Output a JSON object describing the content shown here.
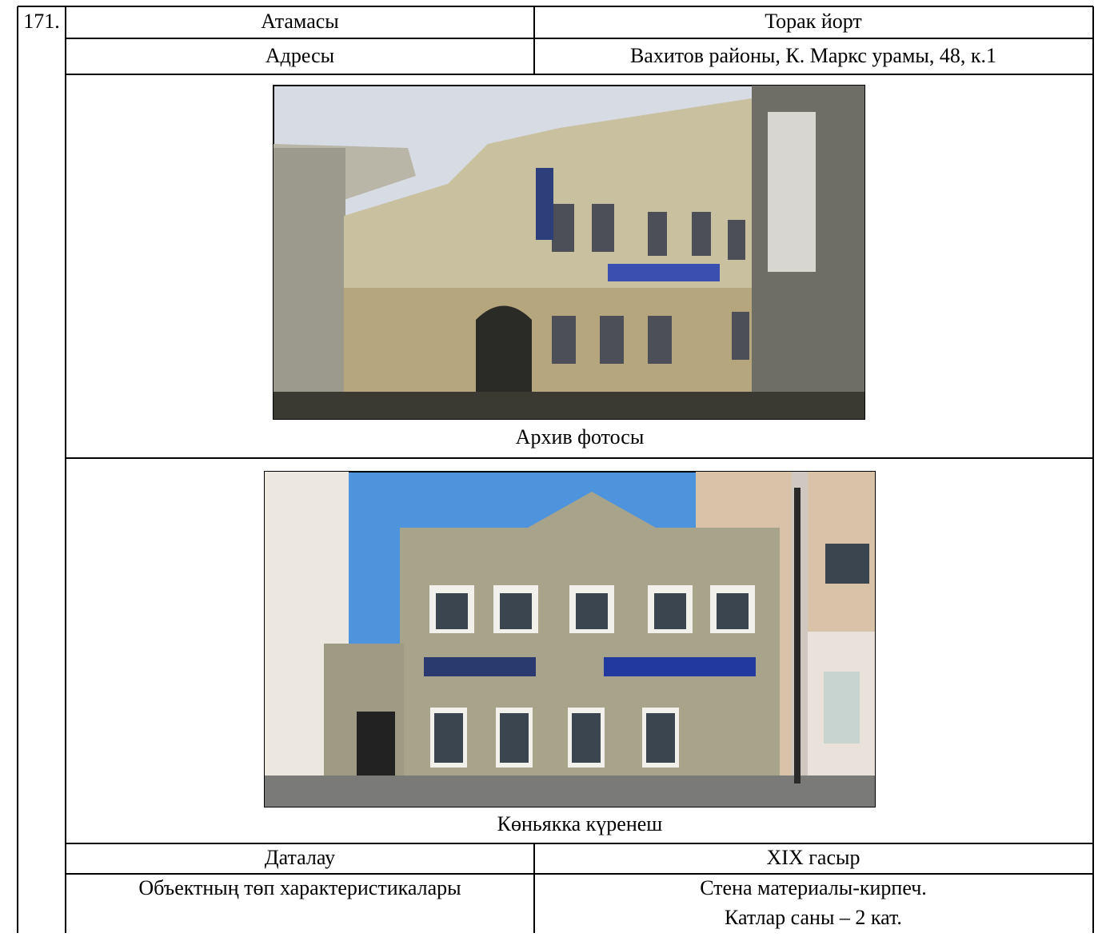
{
  "number": "171.",
  "table": {
    "rows": [
      [
        "Атамасы",
        "Торак йорт"
      ],
      [
        "Адресы",
        "Вахитов районы, К. Маркс урамы, 48, к.1"
      ]
    ]
  },
  "photos": [
    {
      "caption": "Архив фотосы"
    },
    {
      "caption": "Көньякка күренеш"
    }
  ],
  "details": {
    "rows": [
      [
        "Даталау",
        "XIX гасыр"
      ],
      [
        "Объектның төп характеристикалары",
        [
          "Стена материалы-кирпеч.",
          "Катлар саны – 2 кат."
        ]
      ]
    ]
  }
}
